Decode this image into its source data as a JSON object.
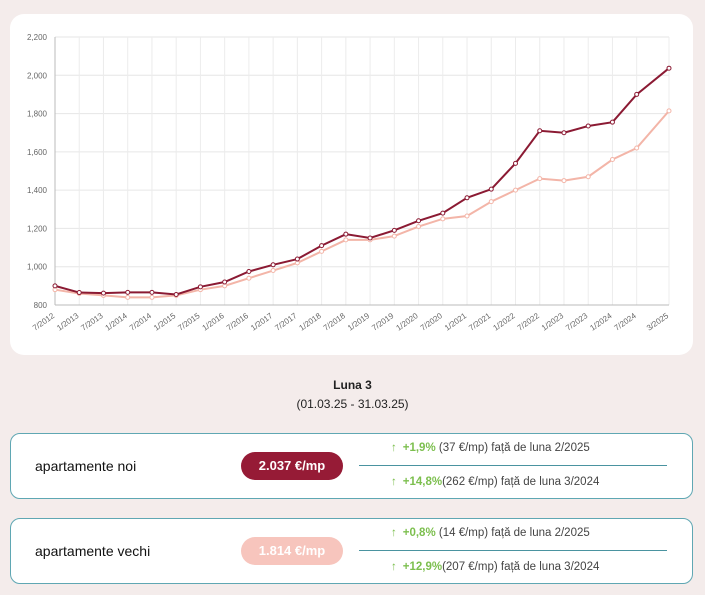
{
  "chart_data": {
    "type": "line",
    "title": "",
    "xlabel": "",
    "ylabel": "",
    "ylim": [
      800,
      2200
    ],
    "yticks": [
      "800",
      "1,000",
      "1,200",
      "1,400",
      "1,600",
      "1,800",
      "2,000",
      "2,200"
    ],
    "ytick_values": [
      800,
      1000,
      1200,
      1400,
      1600,
      1800,
      2000,
      2200
    ],
    "x": [
      "7/2012",
      "1/2013",
      "7/2013",
      "1/2014",
      "7/2014",
      "1/2015",
      "7/2015",
      "1/2016",
      "7/2016",
      "1/2017",
      "7/2017",
      "1/2018",
      "7/2018",
      "1/2019",
      "7/2019",
      "1/2020",
      "7/2020",
      "1/2021",
      "7/2021",
      "1/2022",
      "7/2022",
      "1/2023",
      "7/2023",
      "1/2024",
      "7/2024",
      "3/2025"
    ],
    "x_months": [
      0,
      6,
      12,
      18,
      24,
      30,
      36,
      42,
      48,
      54,
      60,
      66,
      72,
      78,
      84,
      90,
      96,
      102,
      108,
      114,
      120,
      126,
      132,
      138,
      144,
      152
    ],
    "grid": true,
    "series": [
      {
        "name": "apartamente noi",
        "color": "#8b1a33",
        "values": [
          900,
          865,
          862,
          866,
          866,
          855,
          895,
          920,
          975,
          1010,
          1040,
          1110,
          1170,
          1150,
          1190,
          1240,
          1280,
          1360,
          1405,
          1540,
          1710,
          1700,
          1735,
          1755,
          1900,
          2037
        ]
      },
      {
        "name": "apartamente vechi",
        "color": "#f3b5a8",
        "values": [
          880,
          860,
          850,
          840,
          840,
          850,
          880,
          900,
          940,
          980,
          1020,
          1080,
          1140,
          1140,
          1160,
          1210,
          1250,
          1265,
          1340,
          1400,
          1460,
          1450,
          1470,
          1560,
          1620,
          1814
        ]
      }
    ]
  },
  "period": {
    "title": "Luna 3",
    "range": "(01.03.25 - 31.03.25)"
  },
  "cards": [
    {
      "name": "apartamente noi",
      "price": "2.037 €/mp",
      "color": "#961b36",
      "text_color": "#ffffff",
      "rows": [
        {
          "arrow": "↑",
          "pct": "+1,9%",
          "rest": " (37 €/mp) față de luna 2/2025"
        },
        {
          "arrow": "↑",
          "pct": "+14,8%",
          "rest": "(262 €/mp) față de luna 3/2024"
        }
      ]
    },
    {
      "name": "apartamente vechi",
      "price": "1.814 €/mp",
      "color": "#f7c5bd",
      "text_color": "#ffffff",
      "rows": [
        {
          "arrow": "↑",
          "pct": "+0,8%",
          "rest": " (14 €/mp) față de luna 2/2025"
        },
        {
          "arrow": "↑",
          "pct": "+12,9%",
          "rest": "(207 €/mp) față de luna 3/2024"
        }
      ]
    }
  ]
}
